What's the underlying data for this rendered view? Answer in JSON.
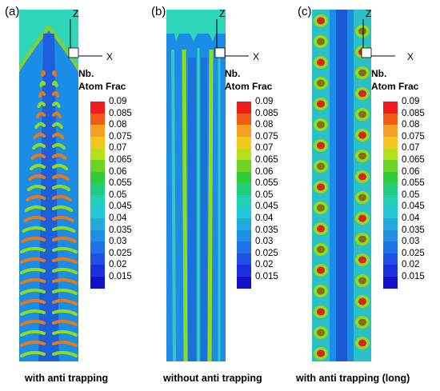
{
  "panels": [
    {
      "letter": "(a)",
      "caption": "with anti trapping"
    },
    {
      "letter": "(b)",
      "caption": "without anti trapping"
    },
    {
      "letter": "(c)",
      "caption": "with anti trapping (long)"
    }
  ],
  "axes": {
    "z_label": "Z",
    "x_label": "X"
  },
  "legend": {
    "title_line1": "Nb.",
    "title_line2": "Atom Frac",
    "levels": [
      "0.09",
      "0.085",
      "0.08",
      "0.075",
      "0.07",
      "0.065",
      "0.06",
      "0.055",
      "0.05",
      "0.045",
      "0.04",
      "0.035",
      "0.03",
      "0.025",
      "0.02",
      "0.015"
    ],
    "colors": [
      "#ee1c1c",
      "#f25a17",
      "#f4a020",
      "#f2c81e",
      "#b8e01a",
      "#6cd224",
      "#2ecc3a",
      "#22cc7c",
      "#20d2b2",
      "#22c8d6",
      "#22aadc",
      "#1e90e4",
      "#1f72e8",
      "#2050e6",
      "#1c30e0",
      "#1210c8"
    ]
  },
  "colors": {
    "matrix": "#1b8de6",
    "background_top": "#2fd6b8",
    "core": "#1c5ad8",
    "green": "#8fdc1c",
    "orange": "#e8781a",
    "red": "#dd2020"
  }
}
